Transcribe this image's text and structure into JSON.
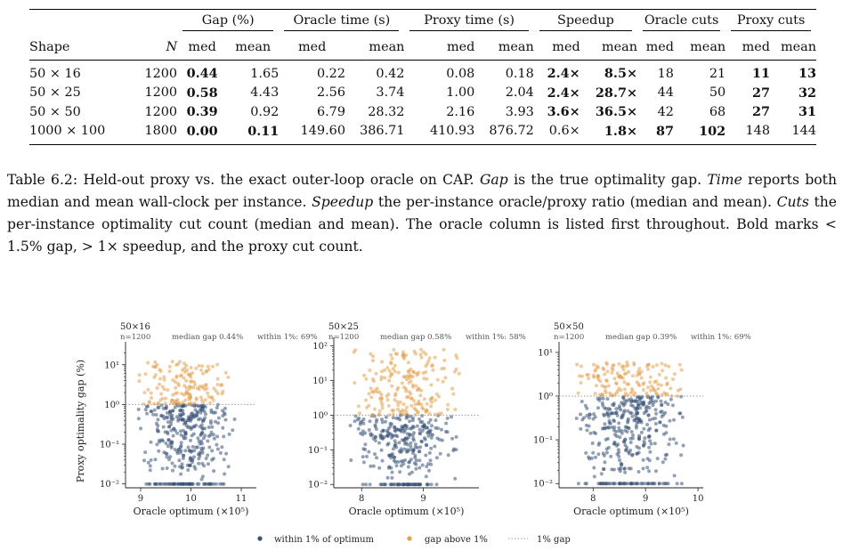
{
  "table": {
    "group_headers": {
      "gap": "Gap (%)",
      "oracle_time": "Oracle time (s)",
      "proxy_time": "Proxy time (s)",
      "speedup": "Speedup",
      "oracle_cuts": "Oracle cuts",
      "proxy_cuts": "Proxy cuts"
    },
    "shape_header": "Shape",
    "n_header": "N",
    "med": "med",
    "mean": "mean",
    "rows": [
      {
        "shape": "50 × 16",
        "n": "1200",
        "gap_med": "0.44",
        "gap_mean": "1.65",
        "ot_med": "0.22",
        "ot_mean": "0.42",
        "pt_med": "0.08",
        "pt_mean": "0.18",
        "sp_med": "2.4×",
        "sp_mean": "8.5×",
        "oc_med": "18",
        "oc_mean": "21",
        "pc_med": "11",
        "pc_mean": "13"
      },
      {
        "shape": "50 × 25",
        "n": "1200",
        "gap_med": "0.58",
        "gap_mean": "4.43",
        "ot_med": "2.56",
        "ot_mean": "3.74",
        "pt_med": "1.00",
        "pt_mean": "2.04",
        "sp_med": "2.4×",
        "sp_mean": "28.7×",
        "oc_med": "44",
        "oc_mean": "50",
        "pc_med": "27",
        "pc_mean": "32"
      },
      {
        "shape": "50 × 50",
        "n": "1200",
        "gap_med": "0.39",
        "gap_mean": "0.92",
        "ot_med": "6.79",
        "ot_mean": "28.32",
        "pt_med": "2.16",
        "pt_mean": "3.93",
        "sp_med": "3.6×",
        "sp_mean": "36.5×",
        "oc_med": "42",
        "oc_mean": "68",
        "pc_med": "27",
        "pc_mean": "31"
      },
      {
        "shape": "1000 × 100",
        "n": "1800",
        "gap_med": "0.00",
        "gap_mean": "0.11",
        "ot_med": "149.60",
        "ot_mean": "386.71",
        "pt_med": "410.93",
        "pt_mean": "876.72",
        "sp_med": "0.6×",
        "sp_mean": "1.8×",
        "oc_med": "87",
        "oc_mean": "102",
        "pc_med": "148",
        "pc_mean": "144"
      }
    ]
  },
  "caption": {
    "label": "Table 6.2:",
    "t1": " Held-out proxy vs. the exact outer-loop oracle on CAP. ",
    "gap_word": "Gap",
    "t2": " is the true optimality gap. ",
    "time_word": "Time",
    "t3": " reports both median and mean wall-clock per instance. ",
    "speedup_word": "Speedup",
    "t4": " the per-instance oracle/proxy ratio (median and mean). ",
    "cuts_word": "Cuts",
    "t5": " the per-instance optimality cut count (median and mean). The oracle column is listed first throughout. Bold marks < 1.5% gap, > 1× speedup, and the proxy cut count."
  },
  "colors": {
    "within": "#3b5378",
    "above": "#e3a04f",
    "threshold_line": "#9a9a9a"
  },
  "chart_data": [
    {
      "type": "scatter",
      "title": "50×16",
      "subtitle_n": "n=1200",
      "subtitle_median": "median gap 0.44%",
      "subtitle_within": "within 1%: 69%",
      "xlabel": "Oracle optimum (×10⁵)",
      "ylabel": "Proxy optimality gap (%)",
      "xlim": [
        8.7,
        11.3
      ],
      "ylim": [
        0.008,
        25
      ],
      "yscale": "log",
      "xticks": [
        9,
        10,
        11
      ],
      "yticks": [
        "10⁻²",
        "10⁻¹",
        "10⁰",
        "10¹"
      ],
      "n_points": 1200,
      "median_gap": 0.44,
      "within_1pct": 0.69,
      "x_range_points": [
        8.9,
        10.9
      ],
      "gap_floor": 0.01,
      "gap_max": 12
    },
    {
      "type": "scatter",
      "title": "50×25",
      "subtitle_n": "n=1200",
      "subtitle_median": "median gap 0.58%",
      "subtitle_within": "within 1%: 58%",
      "xlabel": "Oracle optimum (×10⁵)",
      "ylabel": "",
      "xlim": [
        7.55,
        9.9
      ],
      "ylim": [
        0.008,
        110
      ],
      "yscale": "log",
      "xticks": [
        8,
        9
      ],
      "yticks": [
        "10⁻²",
        "10⁻¹",
        "10⁰",
        "10¹",
        "10²"
      ],
      "n_points": 1200,
      "median_gap": 0.58,
      "within_1pct": 0.58,
      "x_range_points": [
        7.75,
        9.6
      ],
      "gap_floor": 0.01,
      "gap_max": 80
    },
    {
      "type": "scatter",
      "title": "50×50",
      "subtitle_n": "n=1200",
      "subtitle_median": "median gap 0.39%",
      "subtitle_within": "within 1%: 69%",
      "xlabel": "Oracle optimum (×10⁵)",
      "ylabel": "",
      "xlim": [
        7.35,
        10.1
      ],
      "ylim": [
        0.008,
        12
      ],
      "yscale": "log",
      "xticks": [
        8,
        9,
        10
      ],
      "yticks": [
        "10⁻²",
        "10⁻¹",
        "10⁰",
        "10¹"
      ],
      "n_points": 1200,
      "median_gap": 0.39,
      "within_1pct": 0.69,
      "x_range_points": [
        7.6,
        9.85
      ],
      "gap_floor": 0.01,
      "gap_max": 6
    }
  ],
  "legend": {
    "within": "within 1% of optimum",
    "above": "gap above 1%",
    "line": "1% gap"
  }
}
